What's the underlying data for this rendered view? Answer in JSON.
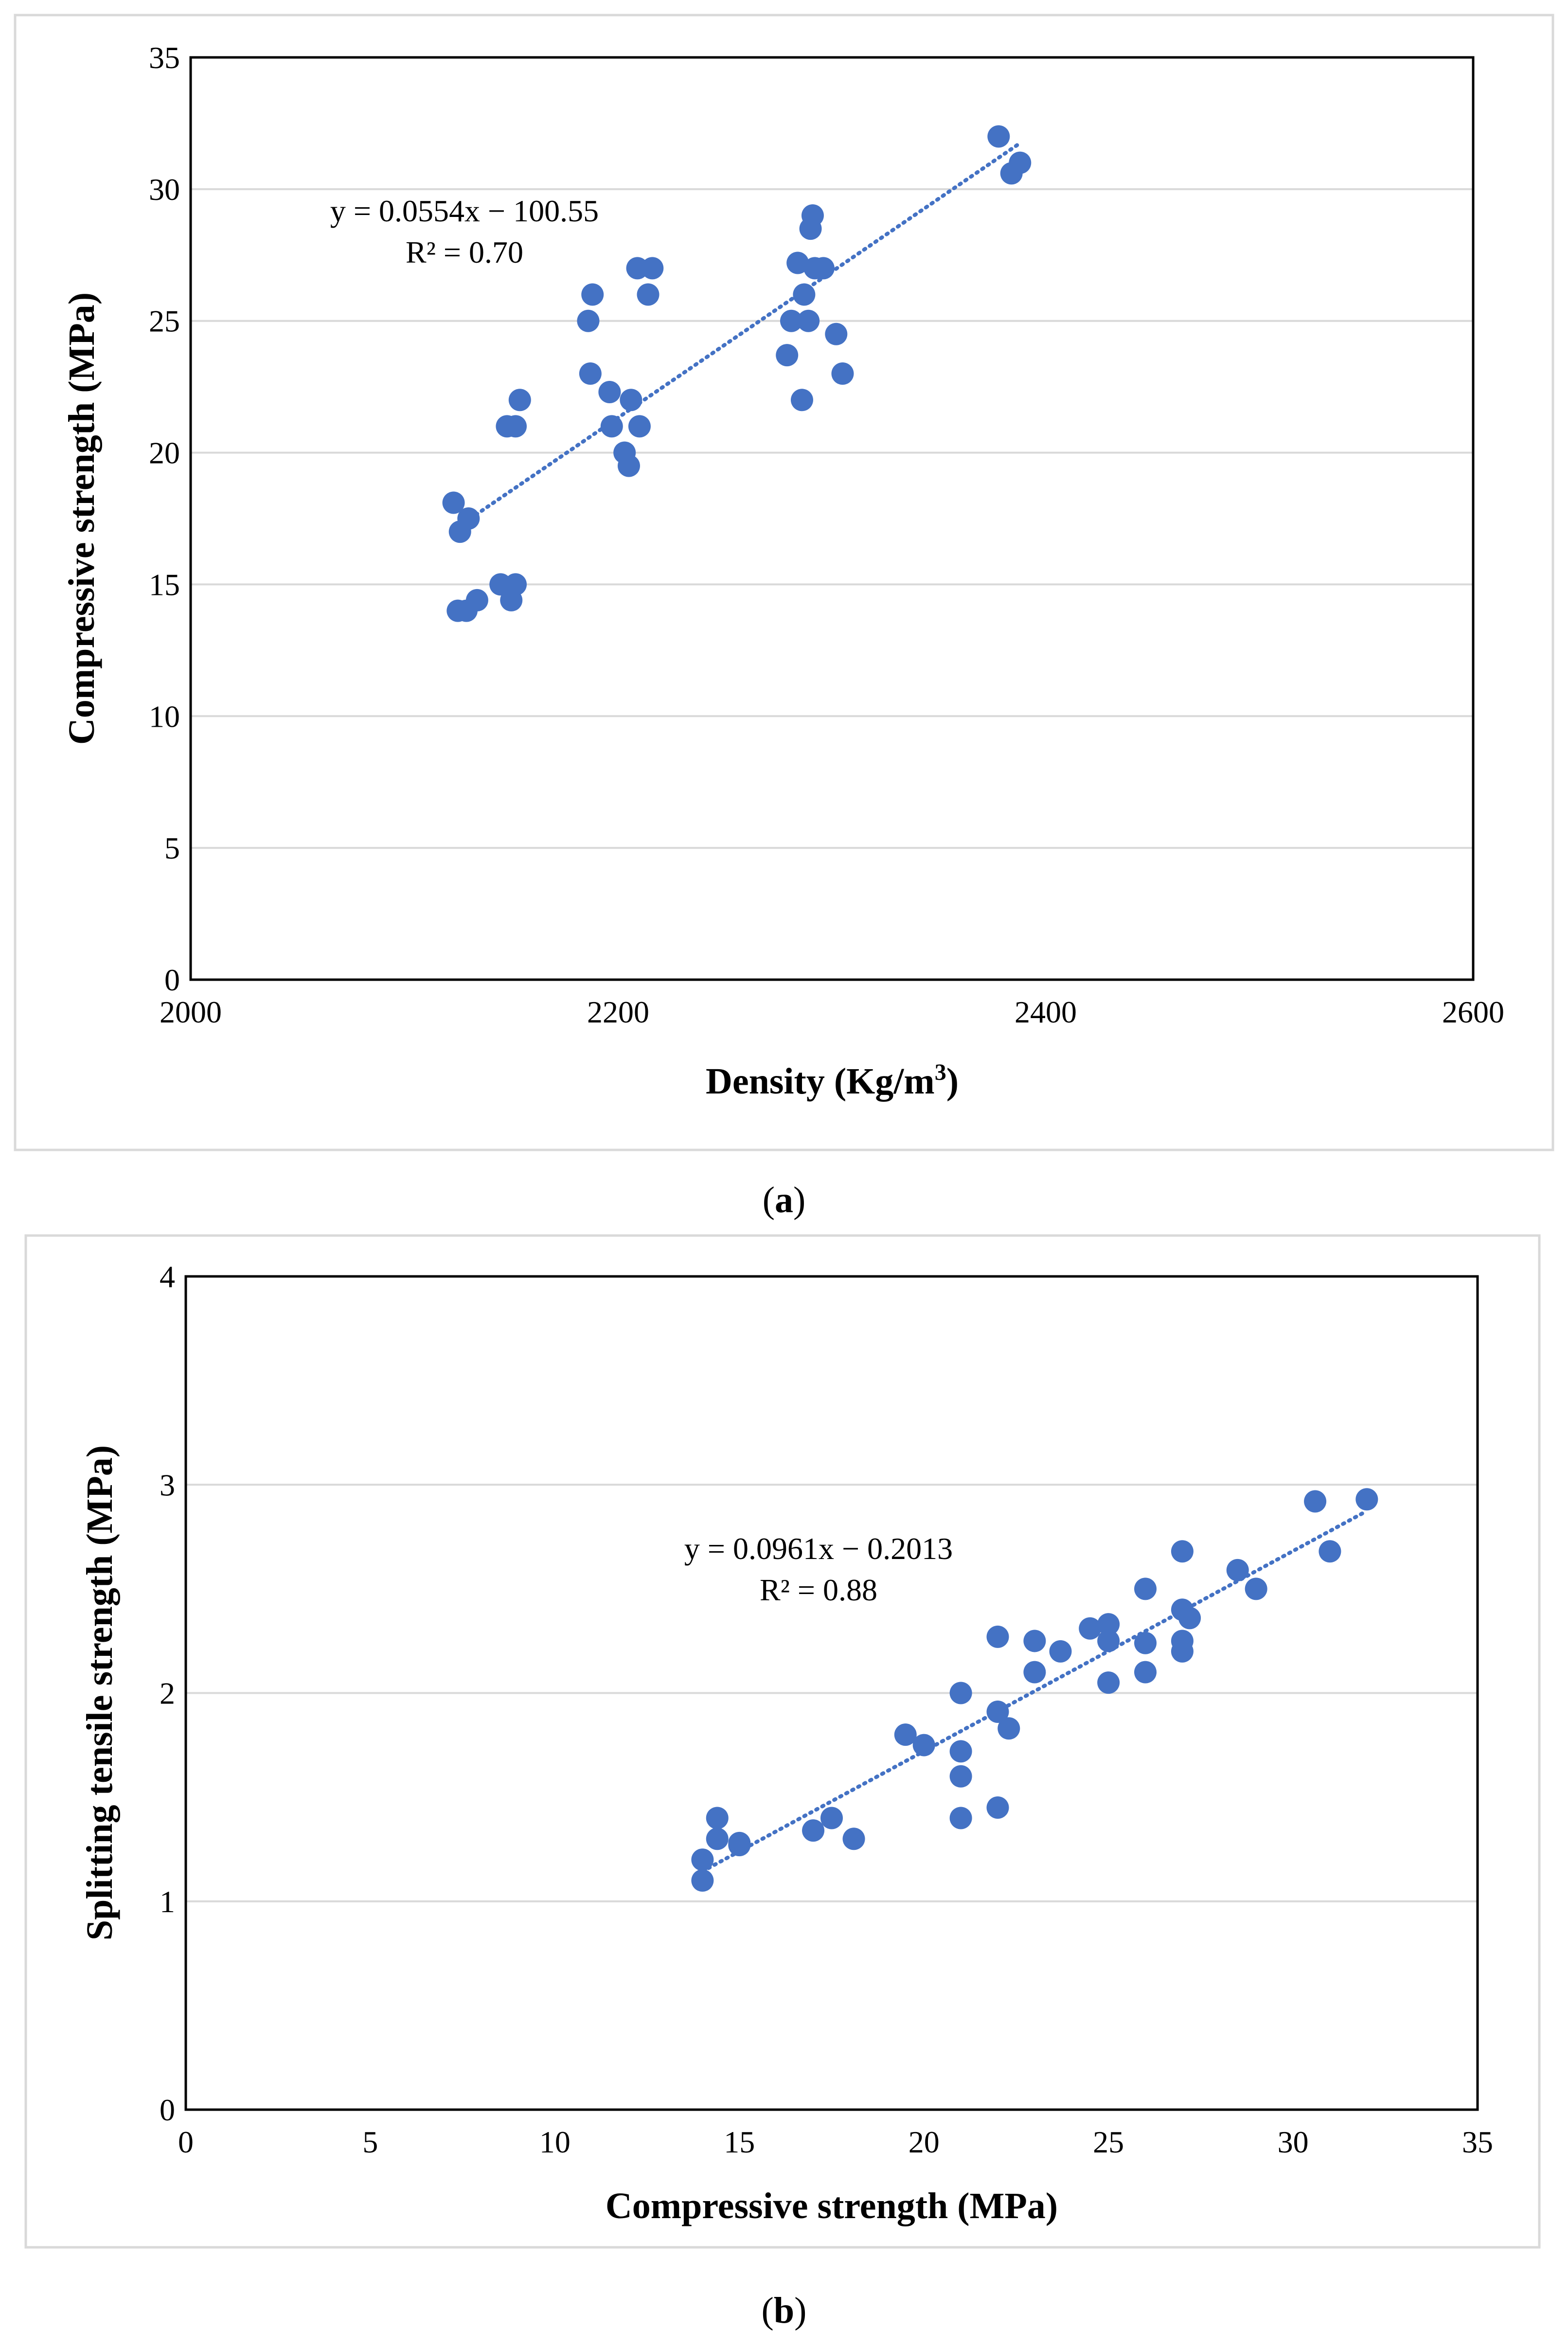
{
  "chart_data": [
    {
      "type": "scatter",
      "caption": "(a)",
      "caption_parts": {
        "open": "(",
        "letter": "a",
        "close": ")"
      },
      "title": "",
      "xlabel": "Density (Kg/m³)",
      "xlabel_parts": {
        "base": "Density (Kg/m",
        "sup": "3",
        "close": ")"
      },
      "ylabel": "Compressive strength (MPa)",
      "xlim": [
        2000,
        2600
      ],
      "ylim": [
        0,
        35
      ],
      "xticks": [
        "2000",
        "2200",
        "2400",
        "2600"
      ],
      "yticks": [
        "0",
        "5",
        "10",
        "15",
        "20",
        "25",
        "30",
        "35"
      ],
      "grid": "horizontal",
      "point_color": "#4472C4",
      "series": [
        {
          "name": "Compressive strength",
          "points": [
            [
              2123,
              18.1
            ],
            [
              2126,
              17.0
            ],
            [
              2130,
              17.5
            ],
            [
              2125,
              14.0
            ],
            [
              2129,
              14.0
            ],
            [
              2134,
              14.4
            ],
            [
              2145,
              15.0
            ],
            [
              2150,
              14.4
            ],
            [
              2152,
              15.0
            ],
            [
              2148,
              21.0
            ],
            [
              2152,
              21.0
            ],
            [
              2154,
              22.0
            ],
            [
              2186,
              25.0
            ],
            [
              2188,
              26.0
            ],
            [
              2187,
              23.0
            ],
            [
              2196,
              22.3
            ],
            [
              2197,
              21.0
            ],
            [
              2203,
              20.0
            ],
            [
              2205,
              19.5
            ],
            [
              2206,
              22.0
            ],
            [
              2210,
              21.0
            ],
            [
              2209,
              27.0
            ],
            [
              2216,
              27.0
            ],
            [
              2214,
              26.0
            ],
            [
              2279,
              23.7
            ],
            [
              2281,
              25.0
            ],
            [
              2284,
              27.2
            ],
            [
              2286,
              22.0
            ],
            [
              2287,
              26.0
            ],
            [
              2289,
              25.0
            ],
            [
              2290,
              28.5
            ],
            [
              2291,
              29.0
            ],
            [
              2292,
              27.0
            ],
            [
              2296,
              27.0
            ],
            [
              2302,
              24.5
            ],
            [
              2305,
              23.0
            ],
            [
              2378,
              32.0
            ],
            [
              2384,
              30.6
            ],
            [
              2388,
              31.0
            ]
          ]
        }
      ],
      "trendline": {
        "type": "linear",
        "slope": 0.0554,
        "intercept": -100.55,
        "x_range": [
          2123,
          2388
        ],
        "equation": "y = 0.0554x − 100.55",
        "r2": "R² = 0.70",
        "color": "#4472C4"
      }
    },
    {
      "type": "scatter",
      "caption": "(b)",
      "caption_parts": {
        "open": "(",
        "letter": "b",
        "close": ")"
      },
      "title": "",
      "xlabel": "Compressive strength (MPa)",
      "ylabel": "Splitting tensile strength (MPa)",
      "xlim": [
        0,
        35
      ],
      "ylim": [
        0,
        4
      ],
      "xticks": [
        "0",
        "5",
        "10",
        "15",
        "20",
        "25",
        "30",
        "35"
      ],
      "yticks": [
        "0",
        "1",
        "2",
        "3",
        "4"
      ],
      "grid": "horizontal",
      "point_color": "#4472C4",
      "series": [
        {
          "name": "Splitting tensile strength",
          "points": [
            [
              14.0,
              1.1
            ],
            [
              14.0,
              1.2
            ],
            [
              14.4,
              1.3
            ],
            [
              14.4,
              1.4
            ],
            [
              15.0,
              1.27
            ],
            [
              15.0,
              1.28
            ],
            [
              17.0,
              1.34
            ],
            [
              17.5,
              1.4
            ],
            [
              18.1,
              1.3
            ],
            [
              19.5,
              1.8
            ],
            [
              20.0,
              1.75
            ],
            [
              21.0,
              2.0
            ],
            [
              21.0,
              1.72
            ],
            [
              21.0,
              1.6
            ],
            [
              21.0,
              1.4
            ],
            [
              22.0,
              2.27
            ],
            [
              22.0,
              1.91
            ],
            [
              22.0,
              1.45
            ],
            [
              22.3,
              1.83
            ],
            [
              23.0,
              2.25
            ],
            [
              23.0,
              2.1
            ],
            [
              23.7,
              2.2
            ],
            [
              24.5,
              2.31
            ],
            [
              25.0,
              2.33
            ],
            [
              25.0,
              2.25
            ],
            [
              25.0,
              2.05
            ],
            [
              26.0,
              2.5
            ],
            [
              26.0,
              2.24
            ],
            [
              26.0,
              2.1
            ],
            [
              27.0,
              2.68
            ],
            [
              27.0,
              2.4
            ],
            [
              27.0,
              2.25
            ],
            [
              27.0,
              2.2
            ],
            [
              27.2,
              2.36
            ],
            [
              28.5,
              2.59
            ],
            [
              29.0,
              2.5
            ],
            [
              30.6,
              2.92
            ],
            [
              31.0,
              2.68
            ],
            [
              32.0,
              2.93
            ]
          ]
        }
      ],
      "trendline": {
        "type": "linear",
        "slope": 0.0961,
        "intercept": -0.2013,
        "x_range": [
          14.0,
          32.0
        ],
        "equation": "y = 0.0961x − 0.2013",
        "r2": "R² = 0.88",
        "color": "#4472C4"
      }
    }
  ]
}
